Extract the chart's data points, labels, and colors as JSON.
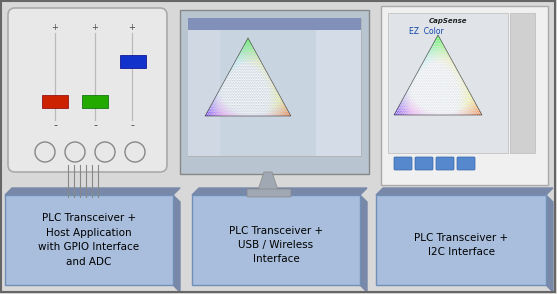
{
  "bg_color": "#d8d8d8",
  "border_color": "#555555",
  "box_color": "#a8bedc",
  "box_edge_color": "#7090b8",
  "box_shadow_color": "#7888a8",
  "device1_label": "PLC Transceiver +\nHost Application\nwith GPIO Interface\nand ADC",
  "device2_label": "PLC Transceiver +\nUSB / Wireless\nInterface",
  "device3_label": "PLC Transceiver +\nI2C Interface",
  "figsize": [
    5.57,
    2.94
  ],
  "dpi": 100,
  "label_fontsize": 7.5,
  "red_bar_color": "#cc2200",
  "green_bar_color": "#22aa00",
  "blue_bar_color": "#1133cc",
  "panel_color": "#e8e8e8",
  "monitor_frame": "#c0c8d4",
  "screen_bg": "#c8d8e8",
  "device3_bg": "#f0f0f0"
}
